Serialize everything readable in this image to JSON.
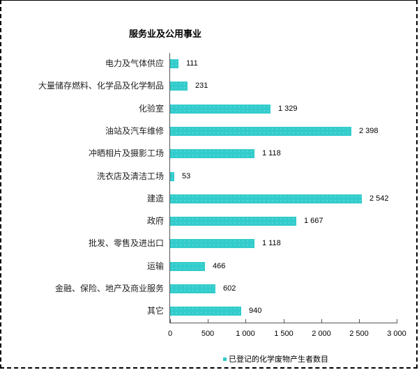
{
  "chart_data": {
    "type": "bar",
    "orientation": "horizontal",
    "title": "服务业及公用事业",
    "categories": [
      "电力及气体供应",
      "大量储存燃料、化学品及化学制品",
      "化验室",
      "油站及汽车维修",
      "冲晒相片及摄影工场",
      "洗衣店及清洁工场",
      "建造",
      "政府",
      "批发、零售及进出口",
      "运输",
      "金融、保险、地产及商业服务",
      "其它"
    ],
    "series": [
      {
        "name": "已登记的化学废物产生者数目",
        "color": "#33cccc",
        "values": [
          111,
          231,
          1329,
          2398,
          1118,
          53,
          2542,
          1667,
          1118,
          466,
          602,
          940
        ]
      }
    ],
    "value_labels": [
      "111",
      "231",
      "1 329",
      "2 398",
      "1 118",
      "53",
      "2 542",
      "1 667",
      "1 118",
      "466",
      "602",
      "940"
    ],
    "xlabel": "",
    "ylabel": "",
    "xlim": [
      0,
      3000
    ],
    "x_ticks": [
      "0",
      "500",
      "1 000",
      "1 500",
      "2 000",
      "2 500",
      "3 000"
    ],
    "grid": false,
    "legend_position": "bottom"
  }
}
